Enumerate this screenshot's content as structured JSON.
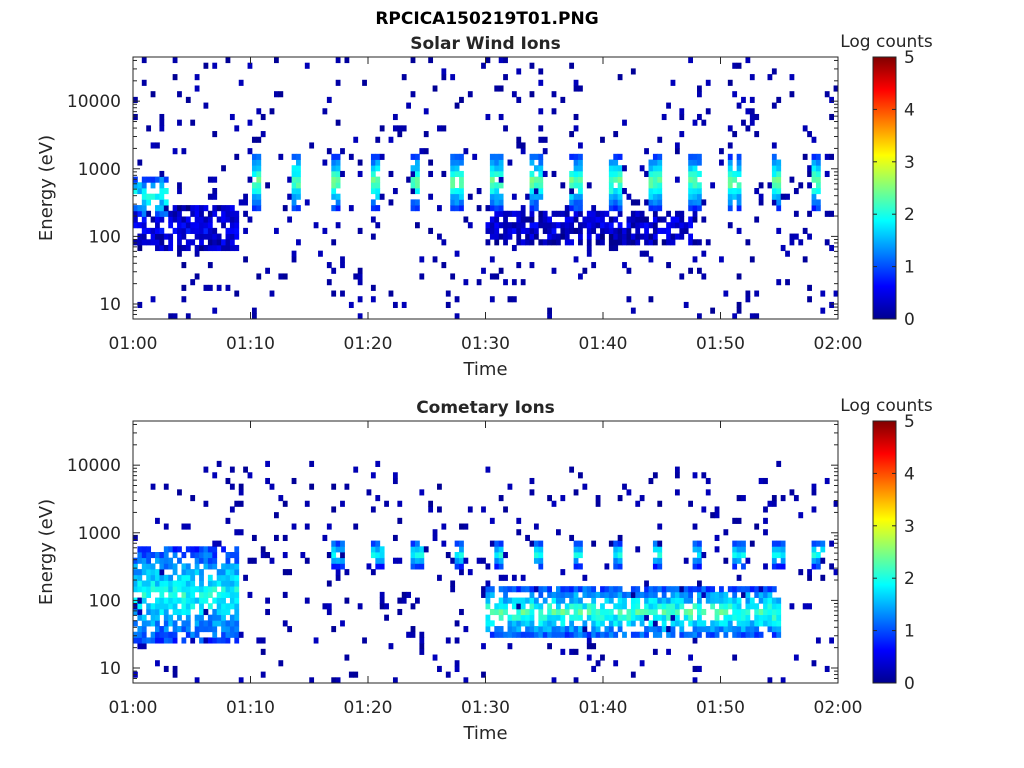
{
  "figure": {
    "title": "RPCICA150219T01.PNG"
  },
  "colors": {
    "colormap": "jet",
    "background": "#ffffff",
    "axes": "#262626"
  },
  "chart_data": [
    {
      "type": "heatmap",
      "title": "Solar Wind Ions",
      "xlabel": "Time",
      "ylabel": "Energy (eV)",
      "x_range": [
        "01:00",
        "02:00"
      ],
      "x_ticks": [
        "01:00",
        "01:10",
        "01:20",
        "01:30",
        "01:40",
        "01:50",
        "02:00"
      ],
      "y_scale": "log",
      "ylim": [
        6,
        45000
      ],
      "y_ticks": [
        "10",
        "100",
        "1000",
        "10000"
      ],
      "colorbar": {
        "label": "Log counts",
        "range": [
          0,
          5
        ],
        "ticks": [
          "0",
          "1",
          "2",
          "3",
          "4",
          "5"
        ]
      },
      "features": [
        {
          "time_range": [
            "01:00",
            "01:03"
          ],
          "energy_range": [
            200,
            800
          ],
          "log_counts": 1.8
        },
        {
          "time_range": [
            "01:00",
            "01:09"
          ],
          "energy_range": [
            60,
            300
          ],
          "log_counts": 0.5
        },
        {
          "time_range": [
            "01:10",
            "02:00"
          ],
          "energy_range": [
            250,
            1700
          ],
          "log_counts": 2.3,
          "pattern": "periodic bursts ~3.4 min"
        },
        {
          "time_range": [
            "01:30",
            "01:48"
          ],
          "energy_range": [
            80,
            250
          ],
          "log_counts": 0.4
        },
        {
          "time_range": [
            "01:00",
            "02:00"
          ],
          "energy_range": [
            6,
            45000
          ],
          "log_counts": 0.1,
          "pattern": "sparse background"
        }
      ]
    },
    {
      "type": "heatmap",
      "title": "Cometary Ions",
      "xlabel": "Time",
      "ylabel": "Energy (eV)",
      "x_range": [
        "01:00",
        "02:00"
      ],
      "x_ticks": [
        "01:00",
        "01:10",
        "01:20",
        "01:30",
        "01:40",
        "01:50",
        "02:00"
      ],
      "y_scale": "log",
      "ylim": [
        6,
        45000
      ],
      "y_ticks": [
        "10",
        "100",
        "1000",
        "10000"
      ],
      "colorbar": {
        "label": "Log counts",
        "range": [
          0,
          5
        ],
        "ticks": [
          "0",
          "1",
          "2",
          "3",
          "4",
          "5"
        ]
      },
      "features": [
        {
          "time_range": [
            "01:00",
            "01:09"
          ],
          "energy_range": [
            25,
            600
          ],
          "log_counts": 1.8
        },
        {
          "time_range": [
            "01:17",
            "02:00"
          ],
          "energy_range": [
            300,
            800
          ],
          "log_counts": 1.9,
          "pattern": "periodic bursts ~3.4 min"
        },
        {
          "time_range": [
            "01:30",
            "01:55"
          ],
          "energy_range": [
            30,
            150
          ],
          "log_counts": 2.0
        },
        {
          "time_range": [
            "01:00",
            "02:00"
          ],
          "energy_range": [
            6,
            12000
          ],
          "log_counts": 0.1,
          "pattern": "sparse background"
        }
      ]
    }
  ]
}
